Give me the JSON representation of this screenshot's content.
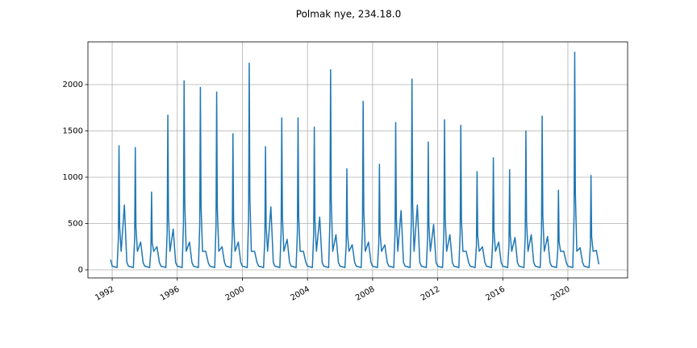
{
  "chart_data": {
    "type": "line",
    "title": "Polmak nye, 234.18.0",
    "x": [
      1991.9,
      1991.95,
      1992,
      1992.3,
      1992.38,
      1992.42,
      1992.46,
      1992.55,
      1992.75,
      1992.9,
      1993,
      1993.3,
      1993.38,
      1993.42,
      1993.46,
      1993.55,
      1993.75,
      1993.9,
      1994,
      1994.3,
      1994.38,
      1994.42,
      1994.46,
      1994.55,
      1994.75,
      1994.9,
      1995,
      1995.3,
      1995.38,
      1995.42,
      1995.46,
      1995.55,
      1995.75,
      1995.9,
      1996,
      1996.3,
      1996.38,
      1996.42,
      1996.46,
      1996.55,
      1996.75,
      1996.9,
      1997,
      1997.3,
      1997.38,
      1997.42,
      1997.46,
      1997.55,
      1997.75,
      1997.9,
      1998,
      1998.3,
      1998.38,
      1998.42,
      1998.46,
      1998.55,
      1998.75,
      1998.9,
      1999,
      1999.3,
      1999.38,
      1999.42,
      1999.46,
      1999.55,
      1999.75,
      1999.9,
      2000,
      2000.3,
      2000.38,
      2000.42,
      2000.46,
      2000.55,
      2000.75,
      2000.9,
      2001,
      2001.3,
      2001.38,
      2001.42,
      2001.46,
      2001.55,
      2001.75,
      2001.9,
      2002,
      2002.3,
      2002.38,
      2002.42,
      2002.46,
      2002.55,
      2002.75,
      2002.9,
      2003,
      2003.3,
      2003.38,
      2003.42,
      2003.46,
      2003.55,
      2003.75,
      2003.9,
      2004,
      2004.3,
      2004.38,
      2004.42,
      2004.46,
      2004.55,
      2004.75,
      2004.9,
      2005,
      2005.3,
      2005.38,
      2005.42,
      2005.46,
      2005.55,
      2005.75,
      2005.9,
      2006,
      2006.3,
      2006.38,
      2006.42,
      2006.46,
      2006.55,
      2006.75,
      2006.9,
      2007,
      2007.3,
      2007.38,
      2007.42,
      2007.46,
      2007.55,
      2007.75,
      2007.9,
      2008,
      2008.3,
      2008.38,
      2008.42,
      2008.46,
      2008.55,
      2008.75,
      2008.9,
      2009,
      2009.3,
      2009.38,
      2009.42,
      2009.46,
      2009.55,
      2009.75,
      2009.9,
      2010,
      2010.3,
      2010.38,
      2010.42,
      2010.46,
      2010.55,
      2010.75,
      2010.9,
      2011,
      2011.3,
      2011.38,
      2011.42,
      2011.46,
      2011.55,
      2011.75,
      2011.9,
      2012,
      2012.3,
      2012.38,
      2012.42,
      2012.46,
      2012.55,
      2012.75,
      2012.9,
      2013,
      2013.3,
      2013.38,
      2013.42,
      2013.46,
      2013.55,
      2013.75,
      2013.9,
      2014,
      2014.3,
      2014.38,
      2014.42,
      2014.46,
      2014.55,
      2014.75,
      2014.9,
      2015,
      2015.3,
      2015.38,
      2015.42,
      2015.46,
      2015.55,
      2015.75,
      2015.9,
      2016,
      2016.3,
      2016.38,
      2016.42,
      2016.46,
      2016.55,
      2016.75,
      2016.9,
      2017,
      2017.3,
      2017.38,
      2017.42,
      2017.46,
      2017.55,
      2017.75,
      2017.9,
      2018,
      2018.3,
      2018.38,
      2018.42,
      2018.46,
      2018.55,
      2018.75,
      2018.9,
      2019,
      2019.3,
      2019.38,
      2019.42,
      2019.46,
      2019.55,
      2019.75,
      2019.9,
      2020,
      2020.3,
      2020.38,
      2020.42,
      2020.46,
      2020.55,
      2020.75,
      2020.9,
      2021,
      2021.3,
      2021.38,
      2021.42,
      2021.46,
      2021.55,
      2021.75,
      2021.9
    ],
    "series": [
      {
        "color": "#1f77b4",
        "values": [
          110,
          80,
          40,
          25,
          335,
          1340,
          469,
          200,
          700,
          80,
          40,
          25,
          330,
          1320,
          462,
          200,
          300,
          80,
          40,
          25,
          210,
          840,
          294,
          200,
          250,
          80,
          40,
          25,
          418,
          1670,
          585,
          200,
          440,
          80,
          40,
          25,
          510,
          2040,
          714,
          200,
          300,
          80,
          40,
          25,
          493,
          1970,
          690,
          200,
          200,
          80,
          40,
          25,
          480,
          1920,
          672,
          200,
          250,
          80,
          40,
          25,
          368,
          1470,
          515,
          200,
          300,
          80,
          40,
          25,
          558,
          2230,
          781,
          200,
          200,
          80,
          40,
          25,
          333,
          1330,
          466,
          200,
          680,
          80,
          40,
          25,
          410,
          1640,
          574,
          200,
          330,
          80,
          40,
          25,
          410,
          1640,
          574,
          200,
          200,
          80,
          40,
          25,
          385,
          1540,
          539,
          200,
          570,
          80,
          40,
          25,
          540,
          2160,
          756,
          200,
          380,
          80,
          40,
          25,
          273,
          1090,
          382,
          200,
          270,
          80,
          40,
          25,
          455,
          1820,
          637,
          200,
          300,
          80,
          40,
          25,
          285,
          1140,
          399,
          200,
          270,
          80,
          40,
          25,
          398,
          1590,
          557,
          200,
          640,
          80,
          40,
          25,
          515,
          2060,
          721,
          200,
          700,
          80,
          40,
          25,
          345,
          1380,
          483,
          200,
          490,
          80,
          40,
          25,
          405,
          1620,
          567,
          200,
          380,
          80,
          40,
          25,
          390,
          1560,
          546,
          200,
          200,
          80,
          40,
          25,
          265,
          1060,
          371,
          200,
          250,
          80,
          40,
          25,
          303,
          1210,
          424,
          200,
          300,
          80,
          40,
          25,
          270,
          1080,
          378,
          200,
          350,
          80,
          40,
          25,
          375,
          1500,
          525,
          200,
          380,
          80,
          40,
          25,
          415,
          1660,
          581,
          200,
          360,
          80,
          40,
          25,
          215,
          860,
          301,
          200,
          200,
          80,
          40,
          25,
          588,
          2350,
          823,
          200,
          240,
          80,
          40,
          25,
          255,
          1020,
          357,
          200,
          210,
          60
        ]
      }
    ],
    "xlim": [
      1990.51,
      2023.67
    ],
    "xticks": [
      1992,
      1996,
      2000,
      2004,
      2008,
      2012,
      2016,
      2020
    ],
    "ylim": [
      -87,
      2461
    ],
    "yticks": [
      0,
      500,
      1000,
      1500,
      2000
    ],
    "grid": true
  }
}
